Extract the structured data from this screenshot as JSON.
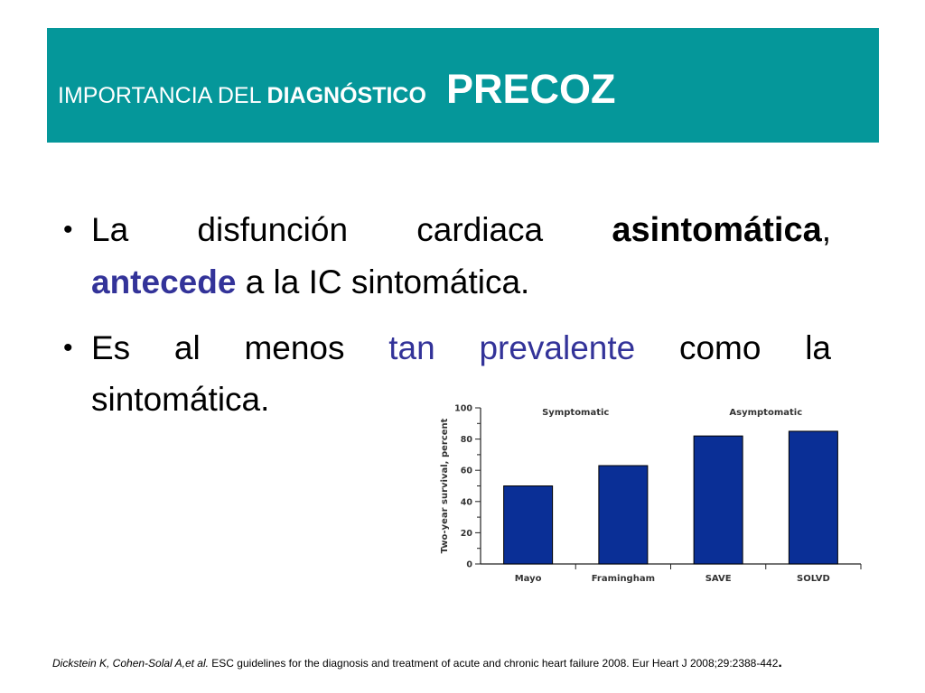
{
  "slide": {
    "title": {
      "part1": "IMPORTANCIA DEL ",
      "part2": "DIAGNÓSTICO",
      "part3": "PRECOZ"
    },
    "bullets": [
      {
        "line1_a": "La  disfunción  cardiaca  ",
        "line1_b": "asintomática",
        "line1_c": ",",
        "line2_a": "antecede",
        "line2_b": " a la  IC sintomática."
      },
      {
        "line1_a": "Es  al  menos  ",
        "line1_b": "tan  prevalente",
        "line1_c": "  como  la",
        "line2_a": "sintomática."
      }
    ],
    "reference": {
      "authors": "Dickstein K, Cohen-Solal A,et al.",
      "text": " ESC guidelines for the diagnosis and treatment  of acute and chronic heart failure 2008. Eur Heart J 2008;29:2388-442",
      "end": "."
    },
    "colors": {
      "title_bar": "#05979a",
      "accent_blue": "#333399",
      "bar_fill": "#0a2f96"
    }
  },
  "chart_data": {
    "type": "bar",
    "categories": [
      "Mayo",
      "Framingham",
      "SAVE",
      "SOLVD"
    ],
    "values": [
      50,
      63,
      82,
      85
    ],
    "group_labels": [
      "Symptomatic",
      "Asymptomatic"
    ],
    "groups": [
      [
        "Mayo",
        "Framingham"
      ],
      [
        "SAVE",
        "SOLVD"
      ]
    ],
    "title": "",
    "xlabel": "",
    "ylabel": "Two-year survival, percent",
    "ylim": [
      0,
      100
    ],
    "yticks": [
      "0",
      "20",
      "40",
      "60",
      "80",
      "100"
    ],
    "grid": false,
    "legend": "none"
  }
}
